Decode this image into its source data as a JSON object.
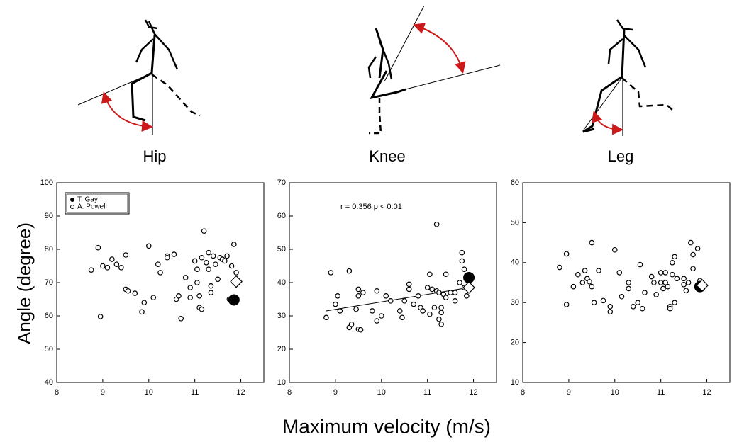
{
  "chart_data": [
    {
      "type": "scatter",
      "title": "Hip",
      "xlim": [
        8,
        12.5
      ],
      "ylim": [
        40,
        100
      ],
      "xticks": [
        8,
        9,
        10,
        11,
        12
      ],
      "yticks": [
        40,
        50,
        60,
        70,
        80,
        90,
        100
      ],
      "legend": "upper left",
      "series": [
        {
          "name": "A. Powell",
          "marker": "open-circle",
          "color": "#000000",
          "x": [
            8.75,
            8.9,
            9.0,
            9.1,
            9.2,
            9.3,
            9.4,
            9.5,
            9.5,
            9.55,
            8.95,
            9.7,
            9.85,
            9.9,
            10.0,
            10.1,
            10.2,
            10.25,
            10.4,
            10.4,
            10.55,
            10.6,
            10.65,
            10.7,
            10.8,
            10.9,
            10.9,
            11.0,
            11.05,
            11.05,
            11.1,
            11.1,
            11.15,
            11.15,
            11.2,
            11.25,
            11.3,
            11.3,
            11.35,
            11.35,
            11.4,
            11.45,
            11.5,
            11.55,
            11.6,
            11.65,
            11.7,
            11.75,
            11.8,
            11.85,
            11.9
          ],
          "values": [
            73.8,
            80.5,
            75,
            74.5,
            77,
            75.5,
            74.5,
            78.3,
            68,
            67.5,
            59.8,
            66.8,
            61.2,
            64,
            81,
            65.5,
            75.5,
            73,
            78,
            77.5,
            78.5,
            65,
            66,
            59.2,
            71.5,
            68.5,
            65.5,
            76.5,
            74,
            70,
            66,
            62.5,
            77.5,
            62,
            85.5,
            76,
            79,
            74,
            69,
            67,
            78,
            75.5,
            71,
            77.5,
            77,
            76.5,
            78,
            65,
            75,
            81.5,
            73
          ]
        },
        {
          "name": "T. Gay",
          "marker": "filled-circle",
          "color": "#000000",
          "x": [
            11.85
          ],
          "values": [
            64.8
          ]
        },
        {
          "marker": "open-diamond",
          "color": "#000000",
          "x": [
            11.9
          ],
          "values": [
            70.3
          ]
        }
      ]
    },
    {
      "type": "scatter",
      "title": "Knee",
      "xlim": [
        8,
        12.5
      ],
      "ylim": [
        10,
        70
      ],
      "xticks": [
        8,
        9,
        10,
        11,
        12
      ],
      "yticks": [
        10,
        20,
        30,
        40,
        50,
        60,
        70
      ],
      "annotation": "r = 0.356  p < 0.01",
      "trendline": {
        "x": [
          8.8,
          11.9
        ],
        "values": [
          31.5,
          38.5
        ]
      },
      "series": [
        {
          "marker": "open-circle",
          "color": "#000000",
          "x": [
            8.8,
            8.9,
            9.0,
            9.05,
            9.1,
            9.3,
            9.3,
            9.35,
            9.5,
            9.5,
            9.5,
            9.55,
            9.45,
            9.6,
            9.8,
            9.9,
            9.9,
            10.0,
            10.1,
            10.2,
            10.4,
            10.45,
            10.5,
            10.6,
            10.6,
            10.7,
            10.8,
            10.85,
            10.9,
            11.0,
            11.05,
            11.05,
            11.1,
            11.15,
            11.2,
            11.2,
            11.25,
            11.25,
            11.3,
            11.3,
            11.3,
            11.35,
            11.4,
            11.4,
            11.5,
            11.6,
            11.6,
            11.7,
            11.75,
            11.75,
            11.8,
            11.8,
            11.85
          ],
          "values": [
            29.5,
            43,
            33.5,
            36,
            31.5,
            43.5,
            26.5,
            27.5,
            38,
            36,
            26,
            25.8,
            32,
            37,
            31.5,
            37.5,
            28.5,
            30,
            36,
            34.5,
            31.5,
            29.5,
            34.5,
            38,
            39.5,
            33.5,
            36,
            32.5,
            31.5,
            38.5,
            42.5,
            30.5,
            38,
            32.5,
            57.5,
            37.5,
            37,
            29,
            32.5,
            27.5,
            31,
            36.5,
            35.5,
            42.5,
            37,
            37,
            34.5,
            40,
            49,
            46.5,
            44,
            38.5,
            36
          ]
        },
        {
          "marker": "filled-circle",
          "color": "#000000",
          "x": [
            11.9
          ],
          "values": [
            41.5
          ]
        },
        {
          "marker": "open-diamond",
          "color": "#000000",
          "x": [
            11.9
          ],
          "values": [
            38.5
          ]
        }
      ]
    },
    {
      "type": "scatter",
      "title": "Leg",
      "xlim": [
        8,
        12.5
      ],
      "ylim": [
        10,
        60
      ],
      "xticks": [
        8,
        9,
        10,
        11,
        12
      ],
      "yticks": [
        10,
        20,
        30,
        40,
        50,
        60
      ],
      "series": [
        {
          "marker": "open-circle",
          "color": "#000000",
          "x": [
            8.8,
            8.95,
            8.95,
            9.1,
            9.2,
            9.3,
            9.35,
            9.4,
            9.45,
            9.5,
            9.5,
            9.55,
            9.65,
            9.75,
            9.9,
            9.9,
            10.0,
            10.1,
            10.15,
            10.3,
            10.3,
            10.4,
            10.5,
            10.55,
            10.6,
            10.65,
            10.8,
            10.85,
            10.9,
            11.0,
            11.0,
            11.05,
            11.1,
            11.1,
            11.15,
            11.2,
            11.2,
            11.25,
            11.25,
            11.3,
            11.3,
            11.35,
            11.5,
            11.5,
            11.55,
            11.6,
            11.65,
            11.7,
            11.8,
            11.85,
            11.7
          ],
          "values": [
            38.8,
            42.2,
            29.5,
            34,
            37,
            35,
            38,
            36,
            35.2,
            45,
            34,
            30,
            38,
            30.5,
            29,
            27.7,
            43.2,
            37.5,
            31.5,
            35,
            33.5,
            29,
            30,
            39.5,
            28.5,
            32.5,
            36.5,
            35,
            32,
            37.5,
            35,
            33.5,
            37.5,
            35,
            34,
            29,
            28.5,
            40,
            37,
            41.5,
            30,
            36,
            36,
            34.5,
            33,
            35,
            45,
            42,
            43.5,
            35.5,
            38.5
          ]
        },
        {
          "marker": "filled-circle",
          "color": "#000000",
          "x": [
            11.85
          ],
          "values": [
            34
          ]
        },
        {
          "marker": "open-diamond",
          "color": "#000000",
          "x": [
            11.9
          ],
          "values": [
            34.3
          ]
        }
      ]
    }
  ],
  "x_axis_label": "Maximum velocity (m/s)",
  "y_axis_label": "Angle (degree)"
}
